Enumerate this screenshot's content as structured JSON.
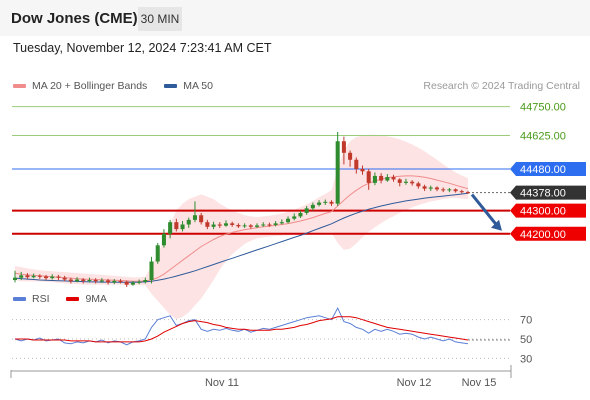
{
  "header": {
    "title": "Dow Jones (CME)",
    "timeframe": "30 MIN"
  },
  "timestamp": "Tuesday, November 12, 2024 7:23:41 AM CET",
  "legend_main": [
    {
      "label": "MA 20 + Bollinger Bands",
      "color": "#f08c8c"
    },
    {
      "label": "MA 50",
      "color": "#2f5b9a"
    }
  ],
  "credit": "Research © 2024 Trading Central",
  "legend_rsi": [
    {
      "label": "RSI",
      "color": "#5a7fd6"
    },
    {
      "label": "9MA",
      "color": "#e00000"
    }
  ],
  "colors": {
    "green_level": "#9ccc7a",
    "blue_level": "#2d6df0",
    "red_level": "#cc0000",
    "up_candle": "#2e8b2e",
    "down_candle": "#c0392b",
    "band_fill": "#fde0e0",
    "current_price_bg": "#333333"
  },
  "chart_data": {
    "type": "candlestick",
    "price_axis": {
      "min": 44000,
      "max": 44800
    },
    "levels": [
      {
        "value": 44750,
        "label": "44750.00",
        "kind": "green"
      },
      {
        "value": 44625,
        "label": "44625.00",
        "kind": "green"
      },
      {
        "value": 44480,
        "label": "44480.00",
        "kind": "blue"
      },
      {
        "value": 44378,
        "label": "44378.00",
        "kind": "current"
      },
      {
        "value": 44300,
        "label": "44300.00",
        "kind": "red"
      },
      {
        "value": 44200,
        "label": "44200.00",
        "kind": "red"
      }
    ],
    "x_labels": [
      "Nov 11",
      "Nov 12",
      "Nov 15"
    ],
    "candles": [
      [
        44000,
        44010,
        44040,
        43990
      ],
      [
        44010,
        44020,
        44035,
        44000
      ],
      [
        44020,
        44012,
        44030,
        44005
      ],
      [
        44012,
        44018,
        44028,
        44008
      ],
      [
        44018,
        44015,
        44025,
        44005
      ],
      [
        44015,
        44008,
        44022,
        44000
      ],
      [
        44008,
        44015,
        44025,
        44002
      ],
      [
        44015,
        44010,
        44022,
        44000
      ],
      [
        44010,
        44002,
        44018,
        43995
      ],
      [
        44002,
        43995,
        44010,
        43985
      ],
      [
        43995,
        44002,
        44012,
        43990
      ],
      [
        44002,
        43996,
        44008,
        43985
      ],
      [
        43996,
        44000,
        44010,
        43990
      ],
      [
        44000,
        43995,
        44008,
        43985
      ],
      [
        43995,
        43998,
        44008,
        43988
      ],
      [
        43998,
        43990,
        44005,
        43980
      ],
      [
        43990,
        43996,
        44004,
        43982
      ],
      [
        43996,
        43992,
        44004,
        43985
      ],
      [
        43992,
        43980,
        43998,
        43970
      ],
      [
        43980,
        43988,
        43996,
        43975
      ],
      [
        43988,
        43992,
        44002,
        43982
      ],
      [
        43992,
        44000,
        44010,
        43985
      ],
      [
        44000,
        44080,
        44100,
        43985
      ],
      [
        44080,
        44150,
        44160,
        44070
      ],
      [
        44150,
        44200,
        44220,
        44140
      ],
      [
        44200,
        44250,
        44260,
        44180
      ],
      [
        44250,
        44220,
        44265,
        44210
      ],
      [
        44220,
        44240,
        44255,
        44210
      ],
      [
        44240,
        44260,
        44270,
        44225
      ],
      [
        44260,
        44280,
        44340,
        44250
      ],
      [
        44280,
        44250,
        44290,
        44240
      ],
      [
        44250,
        44230,
        44260,
        44220
      ],
      [
        44230,
        44240,
        44252,
        44220
      ],
      [
        44240,
        44235,
        44250,
        44225
      ],
      [
        44235,
        44245,
        44258,
        44230
      ],
      [
        44245,
        44238,
        44252,
        44230
      ],
      [
        44238,
        44232,
        44245,
        44225
      ],
      [
        44232,
        44236,
        44245,
        44225
      ],
      [
        44236,
        44230,
        44242,
        44222
      ],
      [
        44230,
        44236,
        44245,
        44225
      ],
      [
        44236,
        44240,
        44250,
        44230
      ],
      [
        44240,
        44238,
        44248,
        44230
      ],
      [
        44238,
        44245,
        44255,
        44232
      ],
      [
        44245,
        44250,
        44262,
        44240
      ],
      [
        44250,
        44265,
        44275,
        44245
      ],
      [
        44265,
        44275,
        44288,
        44258
      ],
      [
        44275,
        44290,
        44300,
        44268
      ],
      [
        44290,
        44310,
        44320,
        44282
      ],
      [
        44310,
        44325,
        44335,
        44300
      ],
      [
        44325,
        44335,
        44345,
        44318
      ],
      [
        44335,
        44338,
        44348,
        44325
      ],
      [
        44338,
        44330,
        44345,
        44320
      ],
      [
        44330,
        44600,
        44640,
        44320
      ],
      [
        44600,
        44550,
        44620,
        44500
      ],
      [
        44550,
        44520,
        44560,
        44490
      ],
      [
        44520,
        44480,
        44530,
        44460
      ],
      [
        44480,
        44470,
        44495,
        44455
      ],
      [
        44470,
        44420,
        44480,
        44390
      ],
      [
        44420,
        44450,
        44465,
        44410
      ],
      [
        44450,
        44430,
        44462,
        44418
      ],
      [
        44430,
        44445,
        44458,
        44425
      ],
      [
        44445,
        44435,
        44455,
        44425
      ],
      [
        44435,
        44420,
        44440,
        44405
      ],
      [
        44420,
        44425,
        44438,
        44412
      ],
      [
        44425,
        44418,
        44432,
        44408
      ],
      [
        44418,
        44405,
        44425,
        44395
      ],
      [
        44405,
        44395,
        44412,
        44385
      ],
      [
        44395,
        44400,
        44408,
        44385
      ],
      [
        44400,
        44392,
        44405,
        44384
      ],
      [
        44392,
        44388,
        44400,
        44380
      ],
      [
        44388,
        44392,
        44398,
        44380
      ],
      [
        44392,
        44384,
        44396,
        44378
      ],
      [
        44384,
        44380,
        44390,
        44375
      ],
      [
        44380,
        44378,
        44386,
        44372
      ]
    ],
    "ma20": [
      44030,
      44025,
      44022,
      44020,
      44018,
      44016,
      44014,
      44012,
      44010,
      44008,
      44006,
      44004,
      44003,
      44002,
      44001,
      44000,
      43999,
      43998,
      43996,
      43995,
      43995,
      43996,
      44000,
      44010,
      44025,
      44045,
      44065,
      44085,
      44105,
      44125,
      44145,
      44160,
      44175,
      44188,
      44198,
      44206,
      44212,
      44218,
      44222,
      44226,
      44230,
      44233,
      44236,
      44240,
      44244,
      44249,
      44255,
      44262,
      44270,
      44279,
      44288,
      44296,
      44320,
      44345,
      44368,
      44388,
      44405,
      44418,
      44428,
      44436,
      44442,
      44446,
      44449,
      44450,
      44450,
      44448,
      44444,
      44439,
      44432,
      44425,
      44418,
      44410,
      44402,
      44395
    ],
    "bb_upper": [
      44060,
      44056,
      44050,
      44046,
      44042,
      44040,
      44038,
      44036,
      44034,
      44032,
      44030,
      44028,
      44026,
      44024,
      44022,
      44020,
      44018,
      44016,
      44014,
      44012,
      44012,
      44014,
      44060,
      44110,
      44170,
      44240,
      44300,
      44330,
      44350,
      44360,
      44370,
      44360,
      44350,
      44330,
      44315,
      44300,
      44290,
      44280,
      44275,
      44272,
      44275,
      44278,
      44282,
      44288,
      44295,
      44304,
      44315,
      44328,
      44342,
      44357,
      44372,
      44388,
      44480,
      44560,
      44600,
      44618,
      44625,
      44628,
      44628,
      44626,
      44622,
      44616,
      44608,
      44598,
      44586,
      44572,
      44556,
      44538,
      44520,
      44500,
      44482,
      44465,
      44452,
      44440
    ],
    "bb_lower": [
      44000,
      43994,
      43994,
      43994,
      43994,
      43992,
      43990,
      43988,
      43986,
      43984,
      43982,
      43980,
      43980,
      43980,
      43980,
      43980,
      43980,
      43980,
      43978,
      43978,
      43978,
      43978,
      43940,
      43910,
      43880,
      43850,
      43830,
      43840,
      43860,
      43890,
      43920,
      43960,
      44000,
      44046,
      44081,
      44112,
      44134,
      44156,
      44169,
      44180,
      44185,
      44188,
      44190,
      44192,
      44193,
      44194,
      44195,
      44196,
      44198,
      44201,
      44204,
      44204,
      44160,
      44130,
      44136,
      44158,
      44185,
      44208,
      44228,
      44246,
      44262,
      44276,
      44290,
      44302,
      44314,
      44324,
      44332,
      44340,
      44344,
      44350,
      44354,
      44355,
      44352,
      44350
    ],
    "ma50": [
      44008,
      44006,
      44004,
      44002,
      44000,
      43999,
      43998,
      43997,
      43996,
      43995,
      43994,
      43993,
      43992,
      43992,
      43991,
      43991,
      43990,
      43990,
      43990,
      43990,
      43991,
      43992,
      43995,
      43999,
      44004,
      44010,
      44017,
      44024,
      44032,
      44040,
      44049,
      44058,
      44067,
      44076,
      44085,
      44094,
      44103,
      44112,
      44121,
      44130,
      44139,
      44148,
      44157,
      44166,
      44175,
      44184,
      44193,
      44203,
      44213,
      44223,
      44233,
      44243,
      44256,
      44268,
      44279,
      44289,
      44298,
      44306,
      44313,
      44320,
      44326,
      44332,
      44337,
      44342,
      44346,
      44350,
      44354,
      44357,
      44360,
      44363,
      44366,
      44369,
      44372,
      44375
    ],
    "rsi_axis": {
      "min": 20,
      "max": 80,
      "ticks": [
        70,
        50,
        30
      ]
    },
    "rsi": [
      50,
      48,
      50,
      49,
      51,
      48,
      49,
      50,
      46,
      45,
      47,
      46,
      48,
      47,
      49,
      46,
      48,
      47,
      44,
      47,
      48,
      50,
      62,
      70,
      72,
      74,
      64,
      66,
      69,
      70,
      60,
      58,
      60,
      59,
      61,
      59,
      58,
      60,
      57,
      59,
      61,
      60,
      62,
      64,
      66,
      68,
      70,
      72,
      73,
      74,
      72,
      70,
      82,
      68,
      66,
      62,
      60,
      56,
      60,
      58,
      60,
      58,
      55,
      56,
      55,
      52,
      50,
      52,
      50,
      48,
      50,
      47,
      46,
      45
    ],
    "rsi_ma": [
      50,
      50,
      50,
      49,
      49,
      49,
      49,
      49,
      49,
      48,
      48,
      48,
      48,
      47,
      47,
      47,
      47,
      47,
      47,
      47,
      47,
      48,
      50,
      53,
      57,
      60,
      63,
      66,
      68,
      69,
      68,
      67,
      65,
      64,
      62,
      61,
      60,
      60,
      59,
      59,
      59,
      59,
      60,
      60,
      61,
      62,
      64,
      65,
      67,
      69,
      70,
      71,
      73,
      73,
      73,
      72,
      70,
      68,
      66,
      64,
      62,
      61,
      60,
      59,
      58,
      57,
      56,
      55,
      54,
      53,
      52,
      51,
      50,
      49
    ]
  }
}
